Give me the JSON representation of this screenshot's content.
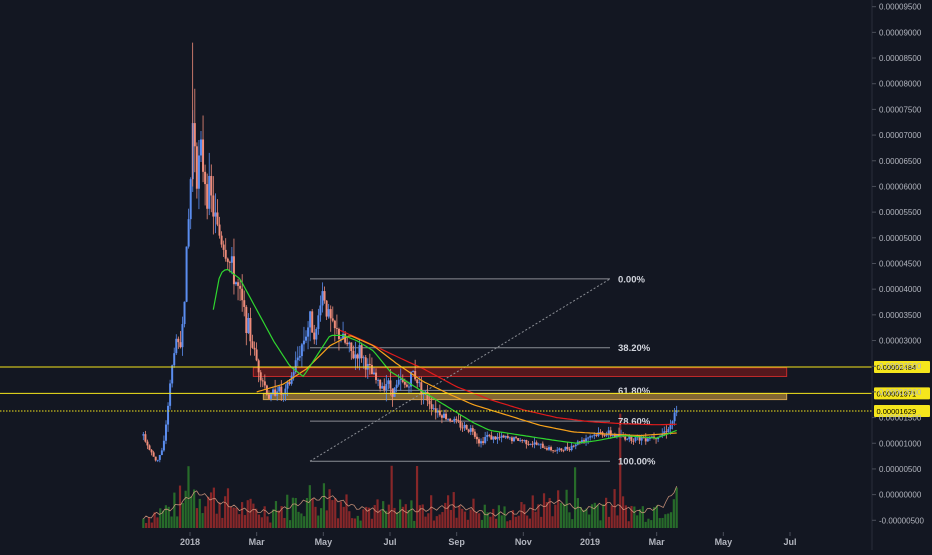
{
  "colors": {
    "background": "#131722",
    "axis_text": "#b2b5be",
    "candle_up": "#5b8def",
    "candle_down": "#ef8c7a",
    "ma_green": "#2fd62f",
    "ma_orange": "#f7a21b",
    "ma_red": "#e01b1b",
    "horizontal_line": "#f5e61c",
    "fib_line": "#8a8d94",
    "resistance_zone": "#8b1a1a",
    "support_zone": "#b38a3a",
    "volume_up": "#2b7a2b",
    "volume_down": "#9c2a2a"
  },
  "chart_data": {
    "type": "candlestick",
    "x_tick_labels": [
      "2018",
      "Mar",
      "May",
      "Jul",
      "Sep",
      "Nov",
      "2019",
      "Mar",
      "May",
      "Jul"
    ],
    "x_tick_months": [
      0,
      2,
      4,
      6,
      8,
      10,
      12,
      14,
      16,
      18
    ],
    "x_range_months": [
      -1.5,
      19.2
    ],
    "y_axis_labels": [
      "0.00009500",
      "0.00009000",
      "0.00008500",
      "0.00008000",
      "0.00007500",
      "0.00007000",
      "0.00006500",
      "0.00006000",
      "0.00005500",
      "0.00005000",
      "0.00004500",
      "0.00004000",
      "0.00003500",
      "0.00003000",
      "0.00002500",
      "0.00002000",
      "0.00001500",
      "0.00001000",
      "0.00000500",
      "0.00000000",
      "-0.00000500"
    ],
    "y_tick_values": [
      9.5e-05,
      9e-05,
      8.5e-05,
      8e-05,
      7.5e-05,
      7e-05,
      6.5e-05,
      6e-05,
      5.5e-05,
      5e-05,
      4.5e-05,
      4e-05,
      3.5e-05,
      3e-05,
      2.5e-05,
      2e-05,
      1.5e-05,
      1e-05,
      5e-06,
      0,
      -5e-06
    ],
    "y_range": [
      -6.5e-06,
      9.63e-05
    ],
    "close_path": [
      {
        "m": -1.4,
        "v": 1.15e-05
      },
      {
        "m": -1.2,
        "v": 8.5e-06
      },
      {
        "m": -1.0,
        "v": 6.5e-06
      },
      {
        "m": -0.8,
        "v": 9e-06
      },
      {
        "m": -0.6,
        "v": 2.1e-05
      },
      {
        "m": -0.45,
        "v": 3e-05
      },
      {
        "m": -0.3,
        "v": 2.8e-05
      },
      {
        "m": -0.15,
        "v": 4.1e-05
      },
      {
        "m": 0.0,
        "v": 5.8e-05
      },
      {
        "m": 0.1,
        "v": 7.5e-05
      },
      {
        "m": 0.2,
        "v": 6.3e-05
      },
      {
        "m": 0.35,
        "v": 6.6e-05
      },
      {
        "m": 0.5,
        "v": 6e-05
      },
      {
        "m": 0.65,
        "v": 5.7e-05
      },
      {
        "m": 0.8,
        "v": 5.2e-05
      },
      {
        "m": 1.0,
        "v": 4.9e-05
      },
      {
        "m": 1.2,
        "v": 4.5e-05
      },
      {
        "m": 1.4,
        "v": 4.1e-05
      },
      {
        "m": 1.6,
        "v": 3.6e-05
      },
      {
        "m": 1.8,
        "v": 3.1e-05
      },
      {
        "m": 2.0,
        "v": 2.6e-05
      },
      {
        "m": 2.2,
        "v": 2.2e-05
      },
      {
        "m": 2.4,
        "v": 1.85e-05
      },
      {
        "m": 2.6,
        "v": 2.1e-05
      },
      {
        "m": 2.8,
        "v": 1.9e-05
      },
      {
        "m": 3.0,
        "v": 2.2e-05
      },
      {
        "m": 3.2,
        "v": 2.6e-05
      },
      {
        "m": 3.4,
        "v": 3e-05
      },
      {
        "m": 3.6,
        "v": 3.4e-05
      },
      {
        "m": 3.8,
        "v": 3.1e-05
      },
      {
        "m": 3.9,
        "v": 3.8e-05
      },
      {
        "m": 4.0,
        "v": 4e-05
      },
      {
        "m": 4.1,
        "v": 3.6e-05
      },
      {
        "m": 4.3,
        "v": 3.2e-05
      },
      {
        "m": 4.5,
        "v": 3.1e-05
      },
      {
        "m": 4.7,
        "v": 2.9e-05
      },
      {
        "m": 4.9,
        "v": 2.7e-05
      },
      {
        "m": 5.1,
        "v": 2.8e-05
      },
      {
        "m": 5.3,
        "v": 2.5e-05
      },
      {
        "m": 5.5,
        "v": 2.3e-05
      },
      {
        "m": 5.7,
        "v": 2.1e-05
      },
      {
        "m": 5.9,
        "v": 2.2e-05
      },
      {
        "m": 6.1,
        "v": 2e-05
      },
      {
        "m": 6.3,
        "v": 2.2e-05
      },
      {
        "m": 6.5,
        "v": 2.1e-05
      },
      {
        "m": 6.7,
        "v": 2.4e-05
      },
      {
        "m": 6.9,
        "v": 2.1e-05
      },
      {
        "m": 7.1,
        "v": 1.9e-05
      },
      {
        "m": 7.3,
        "v": 1.7e-05
      },
      {
        "m": 7.5,
        "v": 1.6e-05
      },
      {
        "m": 7.7,
        "v": 1.5e-05
      },
      {
        "m": 7.9,
        "v": 1.45e-05
      },
      {
        "m": 8.1,
        "v": 1.35e-05
      },
      {
        "m": 8.3,
        "v": 1.3e-05
      },
      {
        "m": 8.5,
        "v": 1.25e-05
      },
      {
        "m": 8.7,
        "v": 1e-05
      },
      {
        "m": 8.9,
        "v": 1.15e-05
      },
      {
        "m": 9.1,
        "v": 1.1e-05
      },
      {
        "m": 9.5,
        "v": 1.1e-05
      },
      {
        "m": 10.0,
        "v": 1.05e-05
      },
      {
        "m": 10.5,
        "v": 9.5e-06
      },
      {
        "m": 11.0,
        "v": 8.5e-06
      },
      {
        "m": 11.3,
        "v": 9e-06
      },
      {
        "m": 11.6,
        "v": 1e-05
      },
      {
        "m": 12.0,
        "v": 1.15e-05
      },
      {
        "m": 12.4,
        "v": 1.2e-05
      },
      {
        "m": 12.8,
        "v": 1.15e-05
      },
      {
        "m": 13.2,
        "v": 1.1e-05
      },
      {
        "m": 13.6,
        "v": 1.1e-05
      },
      {
        "m": 14.0,
        "v": 1.15e-05
      },
      {
        "m": 14.2,
        "v": 1.2e-05
      },
      {
        "m": 14.4,
        "v": 1.35e-05
      },
      {
        "m": 14.6,
        "v": 1.6e-05
      }
    ],
    "ma_green": [
      {
        "m": 0.7,
        "v": 3.6e-05
      },
      {
        "m": 0.9,
        "v": 4.3e-05
      },
      {
        "m": 1.1,
        "v": 4.4e-05
      },
      {
        "m": 1.5,
        "v": 4.2e-05
      },
      {
        "m": 2.0,
        "v": 3.6e-05
      },
      {
        "m": 2.5,
        "v": 3e-05
      },
      {
        "m": 3.0,
        "v": 2.5e-05
      },
      {
        "m": 3.4,
        "v": 2.3e-05
      },
      {
        "m": 3.8,
        "v": 2.7e-05
      },
      {
        "m": 4.2,
        "v": 3.1e-05
      },
      {
        "m": 4.6,
        "v": 3.1e-05
      },
      {
        "m": 5.0,
        "v": 3e-05
      },
      {
        "m": 5.5,
        "v": 2.8e-05
      },
      {
        "m": 6.0,
        "v": 2.4e-05
      },
      {
        "m": 6.5,
        "v": 2.2e-05
      },
      {
        "m": 7.0,
        "v": 2e-05
      },
      {
        "m": 7.5,
        "v": 1.8e-05
      },
      {
        "m": 8.0,
        "v": 1.6e-05
      },
      {
        "m": 8.5,
        "v": 1.4e-05
      },
      {
        "m": 9.0,
        "v": 1.25e-05
      },
      {
        "m": 10.0,
        "v": 1.15e-05
      },
      {
        "m": 11.0,
        "v": 1.05e-05
      },
      {
        "m": 11.6,
        "v": 1e-05
      },
      {
        "m": 12.2,
        "v": 1.05e-05
      },
      {
        "m": 13.0,
        "v": 1.15e-05
      },
      {
        "m": 14.0,
        "v": 1.1e-05
      },
      {
        "m": 14.6,
        "v": 1.25e-05
      }
    ],
    "ma_orange": [
      {
        "m": 2.0,
        "v": 2e-05
      },
      {
        "m": 2.8,
        "v": 2.15e-05
      },
      {
        "m": 3.5,
        "v": 2.45e-05
      },
      {
        "m": 4.2,
        "v": 2.9e-05
      },
      {
        "m": 4.8,
        "v": 3.1e-05
      },
      {
        "m": 5.5,
        "v": 2.9e-05
      },
      {
        "m": 6.2,
        "v": 2.55e-05
      },
      {
        "m": 7.0,
        "v": 2.2e-05
      },
      {
        "m": 7.8,
        "v": 1.95e-05
      },
      {
        "m": 8.5,
        "v": 1.75e-05
      },
      {
        "m": 9.5,
        "v": 1.55e-05
      },
      {
        "m": 10.5,
        "v": 1.35e-05
      },
      {
        "m": 11.5,
        "v": 1.22e-05
      },
      {
        "m": 12.5,
        "v": 1.18e-05
      },
      {
        "m": 13.5,
        "v": 1.15e-05
      },
      {
        "m": 14.6,
        "v": 1.2e-05
      }
    ],
    "ma_red": [
      {
        "m": 4.5,
        "v": 3.2e-05
      },
      {
        "m": 5.2,
        "v": 3e-05
      },
      {
        "m": 6.0,
        "v": 2.75e-05
      },
      {
        "m": 7.0,
        "v": 2.45e-05
      },
      {
        "m": 8.0,
        "v": 2.1e-05
      },
      {
        "m": 9.0,
        "v": 1.85e-05
      },
      {
        "m": 10.0,
        "v": 1.65e-05
      },
      {
        "m": 11.0,
        "v": 1.5e-05
      },
      {
        "m": 12.0,
        "v": 1.42e-05
      },
      {
        "m": 13.0,
        "v": 1.38e-05
      },
      {
        "m": 14.0,
        "v": 1.36e-05
      },
      {
        "m": 14.6,
        "v": 1.37e-05
      }
    ],
    "horizontal_levels": [
      {
        "value": 2.484e-05,
        "label": "0.00002484",
        "style": "solid"
      },
      {
        "value": 1.971e-05,
        "label": "0.00001971",
        "style": "solid"
      },
      {
        "value": 1.629e-05,
        "label": "0.00001629",
        "style": "dotted"
      }
    ],
    "fib_levels": [
      {
        "label": "0.00%",
        "value": 4.2e-05
      },
      {
        "label": "38.20%",
        "value": 2.86e-05
      },
      {
        "label": "61.80%",
        "value": 2.03e-05
      },
      {
        "label": "78.60%",
        "value": 1.43e-05
      },
      {
        "label": "100.00%",
        "value": 6.5e-06
      }
    ],
    "fib_range_months": [
      3.6,
      12.6
    ],
    "zones": [
      {
        "name": "resistance",
        "m0": 1.9,
        "m1": 17.9,
        "v0": 2.3e-05,
        "v1": 2.47e-05
      },
      {
        "name": "support",
        "m0": 2.2,
        "m1": 17.9,
        "v0": 1.85e-05,
        "v1": 1.97e-05
      }
    ],
    "volume_avg": [
      {
        "m": -1.4,
        "v": 0.2
      },
      {
        "m": -0.5,
        "v": 0.45
      },
      {
        "m": 0.2,
        "v": 0.8
      },
      {
        "m": 0.8,
        "v": 0.6
      },
      {
        "m": 1.6,
        "v": 0.4
      },
      {
        "m": 2.5,
        "v": 0.35
      },
      {
        "m": 3.5,
        "v": 0.6
      },
      {
        "m": 4.2,
        "v": 0.7
      },
      {
        "m": 5.0,
        "v": 0.45
      },
      {
        "m": 6.0,
        "v": 0.35
      },
      {
        "m": 7.0,
        "v": 0.4
      },
      {
        "m": 8.0,
        "v": 0.5
      },
      {
        "m": 9.0,
        "v": 0.3
      },
      {
        "m": 10.0,
        "v": 0.35
      },
      {
        "m": 11.0,
        "v": 0.6
      },
      {
        "m": 11.8,
        "v": 0.4
      },
      {
        "m": 12.5,
        "v": 0.55
      },
      {
        "m": 13.5,
        "v": 0.35
      },
      {
        "m": 14.2,
        "v": 0.5
      },
      {
        "m": 14.6,
        "v": 0.9
      }
    ]
  }
}
